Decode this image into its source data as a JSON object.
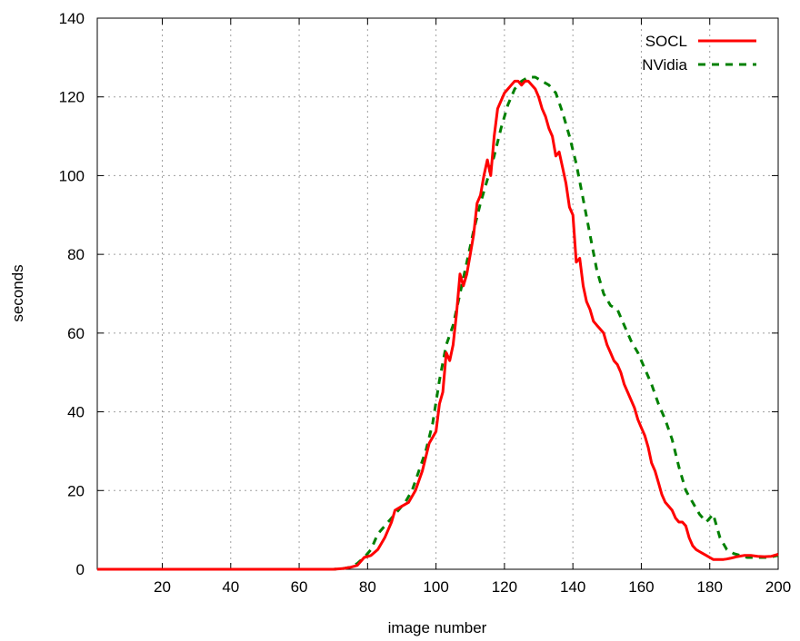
{
  "chart_data": {
    "type": "line",
    "xlabel": "image number",
    "ylabel": "seconds",
    "xlim": [
      1,
      200
    ],
    "ylim": [
      0,
      140
    ],
    "xticks": [
      20,
      40,
      60,
      80,
      100,
      120,
      140,
      160,
      180,
      200
    ],
    "yticks": [
      0,
      20,
      40,
      60,
      80,
      100,
      120,
      140
    ],
    "grid": true,
    "legend_position": "top-right",
    "series": [
      {
        "name": "SOCL",
        "color": "#ff0000",
        "dash": "solid",
        "x": [
          1,
          10,
          20,
          30,
          40,
          50,
          60,
          70,
          73,
          75,
          77,
          79,
          81,
          83,
          85,
          87,
          88,
          90,
          92,
          94,
          96,
          98,
          100,
          101,
          102,
          103,
          104,
          105,
          106,
          107,
          108,
          109,
          110,
          111,
          112,
          113,
          114,
          115,
          116,
          117,
          118,
          119,
          120,
          121,
          122,
          123,
          124,
          125,
          126,
          127,
          128,
          129,
          130,
          131,
          132,
          133,
          134,
          135,
          136,
          137,
          138,
          139,
          140,
          141,
          142,
          143,
          144,
          145,
          146,
          147,
          148,
          149,
          150,
          151,
          152,
          153,
          154,
          155,
          156,
          157,
          158,
          159,
          160,
          161,
          162,
          163,
          164,
          165,
          166,
          167,
          168,
          169,
          170,
          171,
          172,
          173,
          174,
          175,
          176,
          177,
          178,
          179,
          180,
          181,
          182,
          183,
          184,
          185,
          186,
          187,
          188,
          190,
          192,
          194,
          196,
          198,
          200
        ],
        "y": [
          0,
          0,
          0,
          0,
          0,
          0,
          0,
          0,
          0.2,
          0.5,
          1,
          3,
          3.5,
          5,
          8,
          12,
          15,
          16,
          17,
          20,
          25,
          32,
          35,
          42,
          45,
          55,
          53,
          57,
          65,
          75,
          72,
          75,
          80,
          85,
          93,
          95,
          100,
          104,
          100,
          110,
          117,
          119,
          121,
          122,
          123,
          124,
          124,
          123,
          124,
          124,
          123,
          122,
          120,
          117,
          115,
          112,
          110,
          105,
          106,
          102,
          98,
          92,
          90,
          78,
          79,
          72,
          68,
          66,
          63,
          62,
          61,
          60,
          57,
          55,
          53,
          52,
          50,
          47,
          45,
          43,
          41,
          38,
          36,
          34,
          31,
          27,
          25,
          22,
          19,
          17,
          16,
          15,
          13,
          12,
          12,
          11,
          8,
          6,
          5,
          4.5,
          4,
          3.5,
          3,
          2.5,
          2.5,
          2.5,
          2.5,
          2.6,
          2.8,
          3,
          3.2,
          3.5,
          3.5,
          3.3,
          3.2,
          3.3,
          3.8
        ]
      },
      {
        "name": "NVidia",
        "color": "#008000",
        "dash": "dashed",
        "x": [
          1,
          10,
          20,
          30,
          40,
          50,
          60,
          70,
          73,
          75,
          77,
          79,
          81,
          83,
          85,
          87,
          89,
          91,
          93,
          95,
          97,
          99,
          101,
          103,
          105,
          107,
          109,
          111,
          113,
          115,
          117,
          119,
          121,
          123,
          125,
          127,
          129,
          131,
          133,
          135,
          137,
          139,
          141,
          143,
          145,
          147,
          149,
          151,
          153,
          155,
          157,
          159,
          161,
          163,
          165,
          167,
          169,
          171,
          173,
          175,
          177,
          179,
          181,
          183,
          185,
          187,
          189,
          191,
          193,
          195,
          197,
          200
        ],
        "y": [
          0,
          0,
          0,
          0,
          0,
          0,
          0,
          0,
          0.2,
          0.5,
          1.5,
          3,
          5,
          9,
          11,
          13,
          15,
          17,
          20,
          25,
          30,
          37,
          48,
          57,
          62,
          70,
          78,
          86,
          93,
          99,
          105,
          112,
          118,
          122,
          124,
          125,
          125,
          124,
          123,
          121,
          116,
          110,
          103,
          94,
          85,
          76,
          70,
          67,
          66,
          62,
          58,
          55,
          51,
          47,
          42,
          38,
          33,
          26,
          20,
          17,
          14,
          12,
          14,
          8,
          5,
          4,
          3.5,
          3,
          3,
          3,
          3,
          3.5
        ]
      }
    ]
  }
}
